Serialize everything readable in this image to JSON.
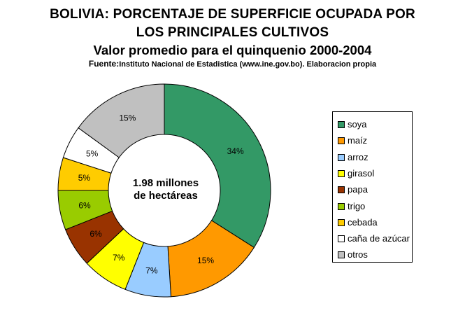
{
  "chart_data": {
    "type": "pie",
    "title_line1": "BOLIVIA:  PORCENTAJE DE SUPERFICIE OCUPADA POR",
    "title_line2": "LOS PRINCIPALES CULTIVOS",
    "subtitle": "Valor promedio para el quinquenio 2000-2004",
    "source_label": "Fuente:",
    "source_text": "Instituto Nacional de Estadistica (www.ine.gov.bo). Elaboracion propia",
    "center_line1": "1.98 millones",
    "center_line2": "de hectáreas",
    "slices": [
      {
        "label": "soya",
        "value": 34,
        "display": "34%",
        "color": "#339966"
      },
      {
        "label": "maíz",
        "value": 15,
        "display": "15%",
        "color": "#FF9900"
      },
      {
        "label": "arroz",
        "value": 7,
        "display": "7%",
        "color": "#99CCFF"
      },
      {
        "label": "girasol",
        "value": 7,
        "display": "7%",
        "color": "#FFFF00"
      },
      {
        "label": "papa",
        "value": 6,
        "display": "6%",
        "color": "#993300"
      },
      {
        "label": "trigo",
        "value": 6,
        "display": "6%",
        "color": "#99CC00"
      },
      {
        "label": "cebada",
        "value": 5,
        "display": "5%",
        "color": "#FFCC00"
      },
      {
        "label": "caña de azúcar",
        "value": 5,
        "display": "5%",
        "color": "#FFFFFF"
      },
      {
        "label": "otros",
        "value": 15,
        "display": "15%",
        "color": "#C0C0C0"
      }
    ],
    "legend_position": "right"
  }
}
